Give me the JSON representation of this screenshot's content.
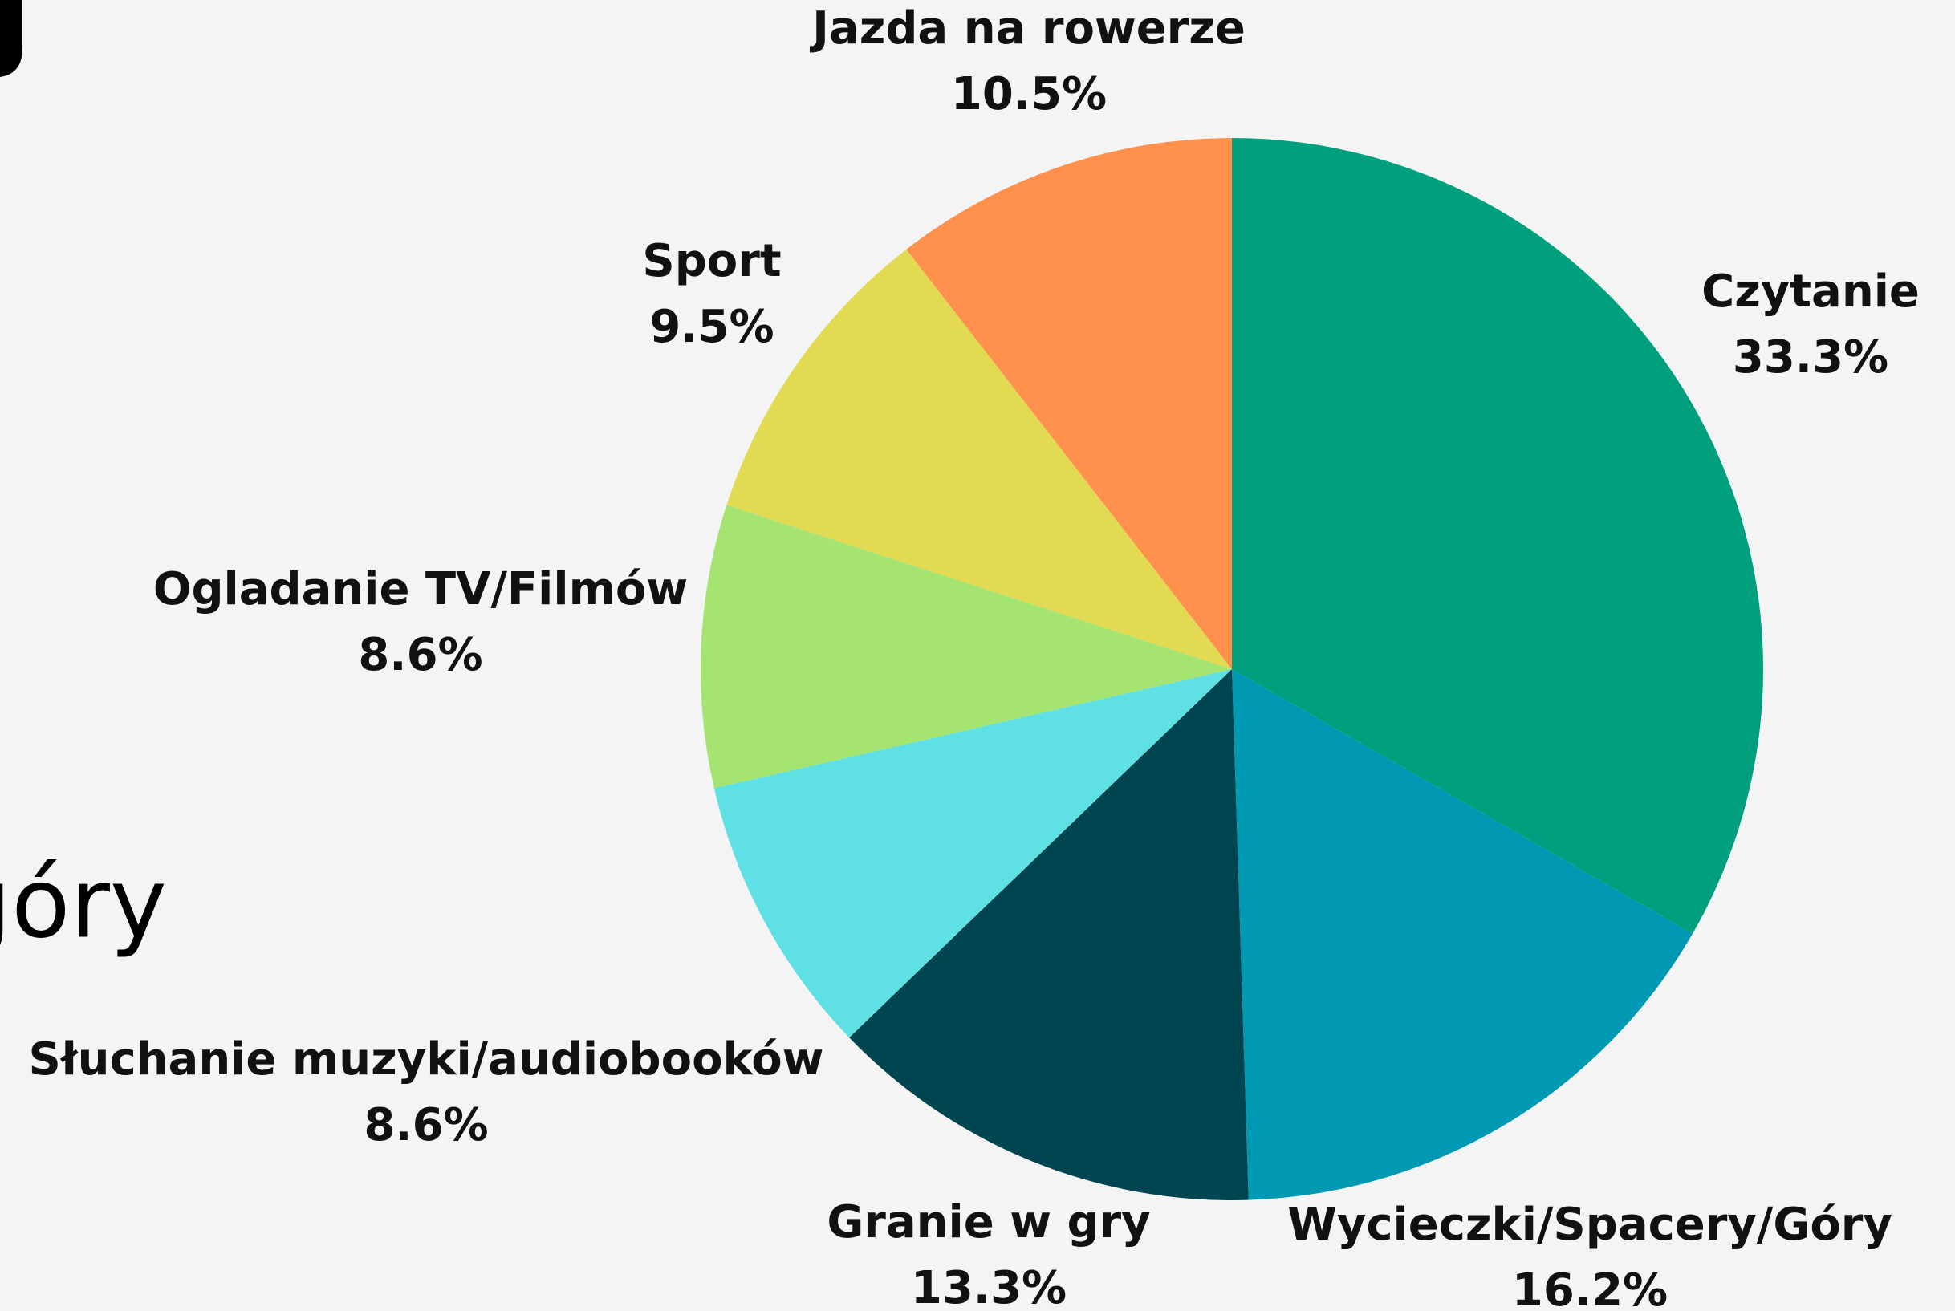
{
  "logo": "góry",
  "chart_data": {
    "type": "pie",
    "categories": [
      "Czytanie",
      "Wycieczki/Spacery/Góry",
      "Granie w gry",
      "Słuchanie muzyki/audiobooków",
      "Ogladanie TV/Filmów",
      "Sport",
      "Jazda na rowerze"
    ],
    "values": [
      33.3,
      16.2,
      13.3,
      8.6,
      8.6,
      9.5,
      10.5
    ],
    "value_labels": [
      "33.3%",
      "16.2%",
      "13.3%",
      "8.6%",
      "8.6%",
      "9.5%",
      "10.5%"
    ],
    "colors": [
      "#00a07e",
      "#0099b3",
      "#004550",
      "#5ee0e4",
      "#a6e472",
      "#e2da52",
      "#ff914d"
    ]
  }
}
